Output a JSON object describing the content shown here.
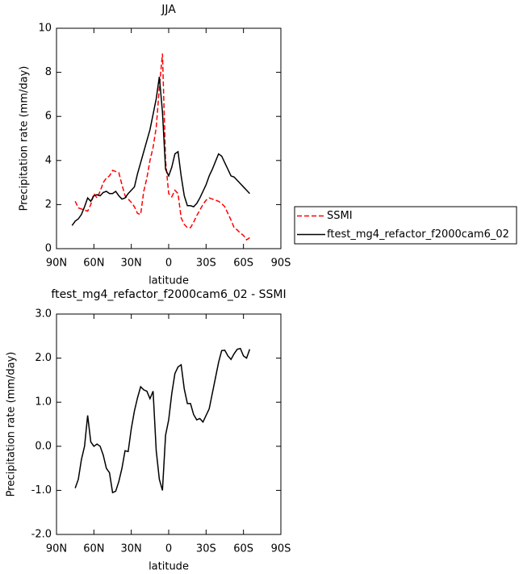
{
  "chart_data": [
    {
      "type": "line",
      "title": "JJA",
      "x_label": "latitude",
      "y_label": "Precipitation rate (mm/day)",
      "x": [
        77.5,
        75,
        72.5,
        70,
        67.5,
        65,
        62.5,
        60,
        57.5,
        55,
        52.5,
        50,
        47.5,
        45,
        42.5,
        40,
        37.5,
        35,
        32.5,
        30,
        27.5,
        25,
        22.5,
        20,
        17.5,
        15,
        12.5,
        10,
        7.5,
        5,
        2.5,
        0,
        -2.5,
        -5,
        -7.5,
        -10,
        -12.5,
        -15,
        -17.5,
        -20,
        -22.5,
        -25,
        -27.5,
        -30,
        -32.5,
        -35,
        -37.5,
        -40,
        -42.5,
        -45,
        -47.5,
        -50,
        -52.5,
        -55,
        -57.5,
        -60,
        -62.5,
        -65
      ],
      "series": [
        {
          "name": "SSMI",
          "color": "#ff0000",
          "style": "dashed",
          "values": [
            null,
            2.15,
            1.85,
            1.8,
            1.75,
            1.7,
            2.0,
            2.5,
            2.3,
            2.6,
            3.0,
            3.2,
            3.3,
            3.55,
            3.5,
            3.45,
            2.9,
            2.4,
            2.25,
            2.1,
            1.9,
            1.6,
            1.55,
            2.6,
            3.2,
            4.0,
            4.6,
            5.5,
            7.3,
            8.85,
            4.0,
            2.5,
            2.35,
            2.65,
            2.5,
            1.4,
            1.1,
            0.95,
            0.95,
            1.2,
            1.5,
            1.75,
            2.0,
            2.2,
            2.3,
            2.25,
            2.2,
            2.15,
            2.05,
            1.9,
            1.6,
            1.3,
            0.95,
            0.85,
            0.7,
            0.6,
            0.4,
            0.5
          ]
        },
        {
          "name": "ftest_mg4_refactor_f2000cam6_02",
          "color": "#000000",
          "style": "solid",
          "values": [
            1.05,
            1.25,
            1.35,
            1.55,
            1.9,
            2.3,
            2.15,
            2.4,
            2.45,
            2.4,
            2.55,
            2.6,
            2.5,
            2.5,
            2.6,
            2.4,
            2.25,
            2.3,
            2.5,
            2.65,
            2.8,
            3.4,
            3.9,
            4.4,
            4.9,
            5.4,
            6.1,
            6.8,
            7.8,
            6.2,
            3.6,
            3.3,
            3.7,
            4.3,
            4.4,
            3.3,
            2.4,
            1.95,
            1.95,
            1.9,
            2.05,
            2.3,
            2.6,
            2.9,
            3.3,
            3.6,
            3.95,
            4.3,
            4.2,
            3.9,
            3.6,
            3.3,
            3.25,
            3.1,
            2.95,
            2.8,
            2.65,
            2.5
          ]
        }
      ],
      "xlim": [
        90,
        -90
      ],
      "xticks": [
        {
          "value": 90,
          "label": "90N"
        },
        {
          "value": 60,
          "label": "60N"
        },
        {
          "value": 30,
          "label": "30N"
        },
        0,
        {
          "value": -30,
          "label": "30S"
        },
        {
          "value": -60,
          "label": "60S"
        },
        {
          "value": -90,
          "label": "90S"
        }
      ],
      "ylim": [
        0,
        10
      ],
      "yticks": [
        0,
        2,
        4,
        6,
        8,
        10
      ],
      "legend": "right"
    },
    {
      "type": "line",
      "title": "ftest_mg4_refactor_f2000cam6_02 - SSMI",
      "x_label": "latitude",
      "y_label": "Precipitation rate (mm/day)",
      "x": [
        75,
        72.5,
        70,
        67.5,
        65,
        62.5,
        60,
        57.5,
        55,
        52.5,
        50,
        47.5,
        45,
        42.5,
        40,
        37.5,
        35,
        32.5,
        30,
        27.5,
        25,
        22.5,
        20,
        17.5,
        15,
        12.5,
        10,
        7.5,
        5,
        2.5,
        0,
        -2.5,
        -5,
        -7.5,
        -10,
        -12.5,
        -15,
        -17.5,
        -20,
        -22.5,
        -25,
        -27.5,
        -30,
        -32.5,
        -35,
        -37.5,
        -40,
        -42.5,
        -45,
        -47.5,
        -50,
        -52.5,
        -55,
        -57.5,
        -60,
        -62.5,
        -65
      ],
      "series": [
        {
          "name": null,
          "color": "#000000",
          "style": "solid",
          "values": [
            -0.95,
            -0.75,
            -0.3,
            0.0,
            0.7,
            0.1,
            0.0,
            0.05,
            0.0,
            -0.2,
            -0.5,
            -0.6,
            -1.05,
            -1.02,
            -0.8,
            -0.5,
            -0.1,
            -0.12,
            0.4,
            0.8,
            1.1,
            1.35,
            1.28,
            1.25,
            1.08,
            1.25,
            -0.1,
            -0.75,
            -1.0,
            0.25,
            0.6,
            1.2,
            1.65,
            1.8,
            1.85,
            1.3,
            0.97,
            0.97,
            0.72,
            0.6,
            0.63,
            0.55,
            0.7,
            0.85,
            1.2,
            1.55,
            1.9,
            2.17,
            2.18,
            2.05,
            1.97,
            2.1,
            2.2,
            2.22,
            2.05,
            2.0,
            2.2
          ]
        }
      ],
      "xlim": [
        90,
        -90
      ],
      "xticks": [
        {
          "value": 90,
          "label": "90N"
        },
        {
          "value": 60,
          "label": "60N"
        },
        {
          "value": 30,
          "label": "30N"
        },
        0,
        {
          "value": -30,
          "label": "30S"
        },
        {
          "value": -60,
          "label": "60S"
        },
        {
          "value": -90,
          "label": "90S"
        }
      ],
      "ylim": [
        -2,
        3
      ],
      "yticks": [
        {
          "value": -2,
          "label": "-2.0"
        },
        {
          "value": -1,
          "label": "-1.0"
        },
        {
          "value": 0,
          "label": "0.0"
        },
        {
          "value": 1,
          "label": "1.0"
        },
        {
          "value": 2,
          "label": "2.0"
        },
        {
          "value": 3,
          "label": "3.0"
        }
      ]
    }
  ]
}
